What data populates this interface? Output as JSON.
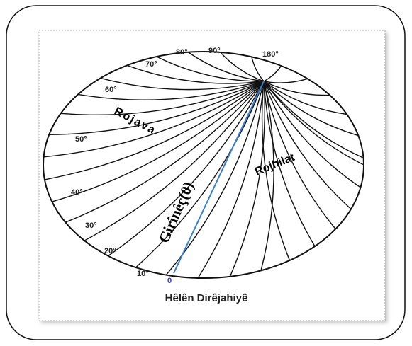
{
  "degree_labels": [
    "0",
    "10°",
    "20°",
    "30°",
    "40°",
    "50°",
    "60°",
    "70°",
    "80°",
    "90°",
    "180°"
  ],
  "west_label": "Rojava",
  "east_label": "Rojhilat",
  "meridian_label": "Girînêç(0)",
  "caption": "Hêlên Dirêjahiyê"
}
